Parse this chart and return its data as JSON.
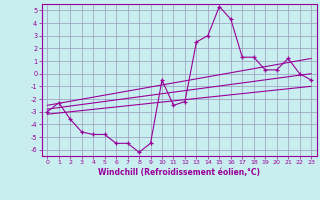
{
  "title": "",
  "xlabel": "Windchill (Refroidissement éolien,°C)",
  "ylabel": "",
  "bg_color": "#c8eef0",
  "line_color": "#990099",
  "grid_color": "#9999bb",
  "xlim": [
    -0.5,
    23.5
  ],
  "ylim": [
    -6.5,
    5.5
  ],
  "yticks": [
    5,
    4,
    3,
    2,
    1,
    0,
    -1,
    -2,
    -3,
    -4,
    -5,
    -6
  ],
  "xticks": [
    0,
    1,
    2,
    3,
    4,
    5,
    6,
    7,
    8,
    9,
    10,
    11,
    12,
    13,
    14,
    15,
    16,
    17,
    18,
    19,
    20,
    21,
    22,
    23
  ],
  "line1_x": [
    0,
    1,
    2,
    3,
    4,
    5,
    6,
    7,
    8,
    9,
    10,
    11,
    12,
    13,
    14,
    15,
    16,
    17,
    18,
    19,
    20,
    21,
    22,
    23
  ],
  "line1_y": [
    -3.0,
    -2.3,
    -3.6,
    -4.6,
    -4.8,
    -4.8,
    -5.5,
    -5.5,
    -6.2,
    -5.5,
    -0.5,
    -2.5,
    -2.2,
    2.5,
    3.0,
    5.3,
    4.3,
    1.3,
    1.3,
    0.3,
    0.3,
    1.2,
    0.0,
    -0.5
  ],
  "line2_x": [
    0,
    23
  ],
  "line2_y": [
    -3.2,
    -1.0
  ],
  "line3_x": [
    0,
    23
  ],
  "line3_y": [
    -2.5,
    1.2
  ],
  "line4_x": [
    0,
    23
  ],
  "line4_y": [
    -2.8,
    0.0
  ]
}
